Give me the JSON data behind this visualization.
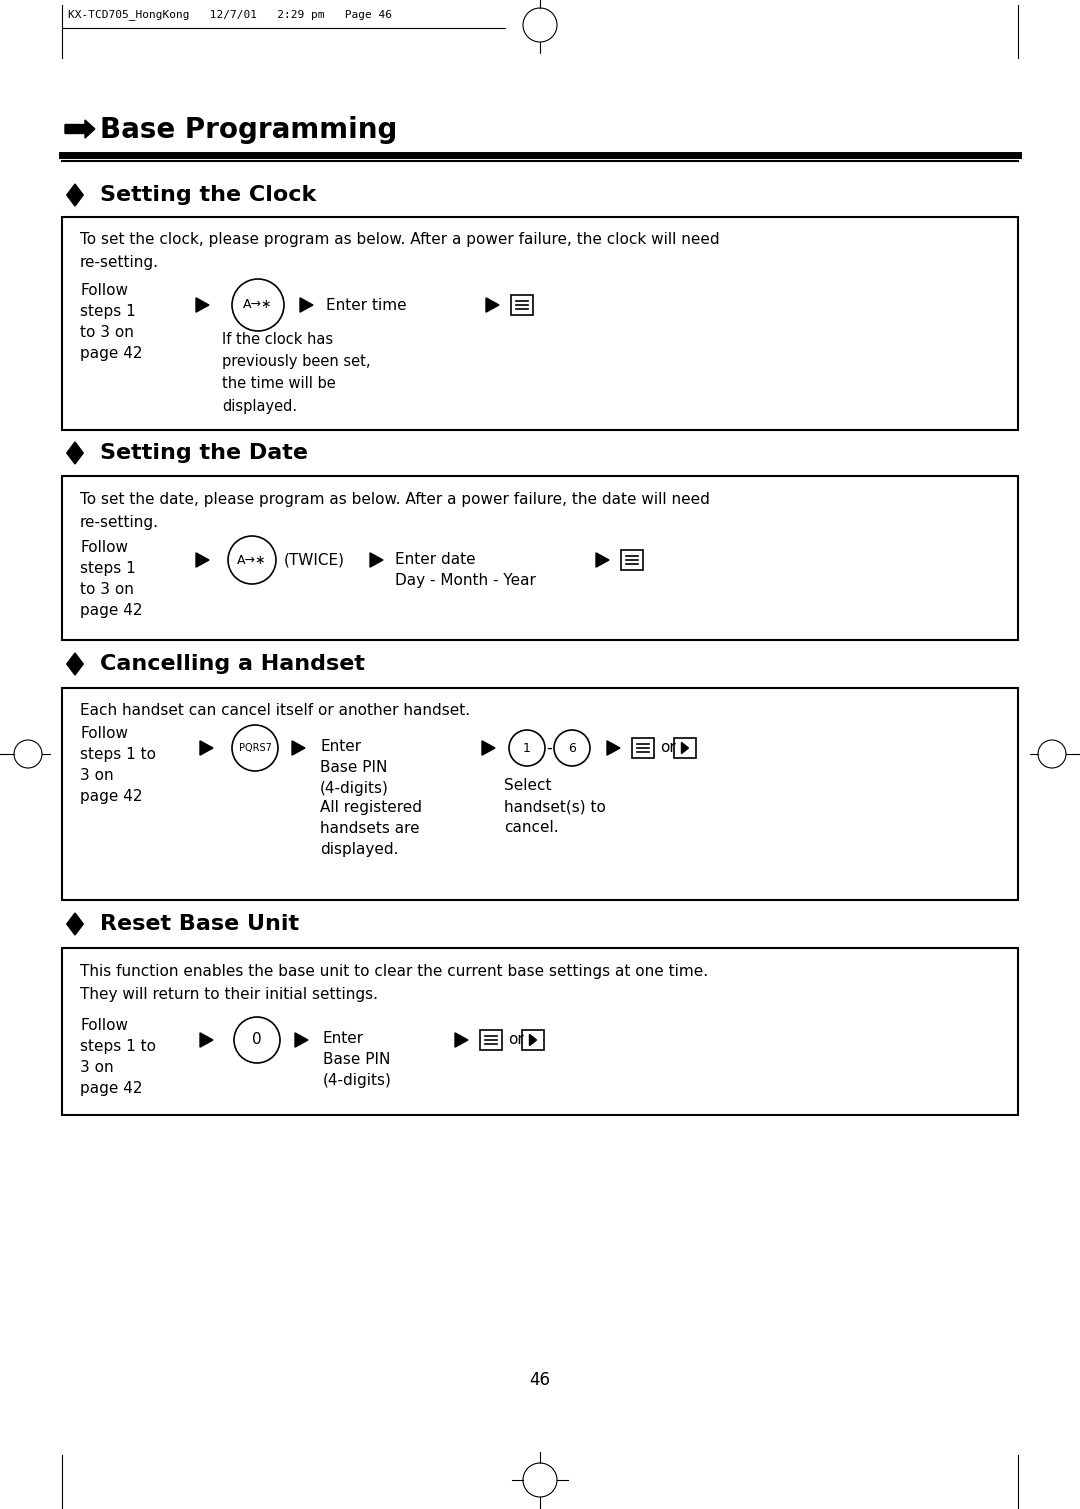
{
  "bg_color": "#ffffff",
  "text_color": "#000000",
  "page_header": "KX-TCD705_HongKong   12/7/01   2:29 pm   Page 46",
  "main_title": "Base Programming",
  "page_number": "46",
  "sections": [
    {
      "title": "Setting the Clock",
      "intro": "To set the clock, please program as below. After a power failure, the clock will need\nre-setting.",
      "steps_left": "Follow\nsteps 1\nto 3 on\npage 42"
    },
    {
      "title": "Setting the Date",
      "intro": "To set the date, please program as below. After a power failure, the date will need\nre-setting.",
      "steps_left": "Follow\nsteps 1\nto 3 on\npage 42"
    },
    {
      "title": "Cancelling a Handset",
      "intro": "Each handset can cancel itself or another handset.",
      "steps_left": "Follow\nsteps 1 to\n3 on\npage 42"
    },
    {
      "title": "Reset Base Unit",
      "intro": "This function enables the base unit to clear the current base settings at one time.\nThey will return to their initial settings.",
      "steps_left": "Follow\nsteps 1 to\n3 on\npage 42"
    }
  ]
}
